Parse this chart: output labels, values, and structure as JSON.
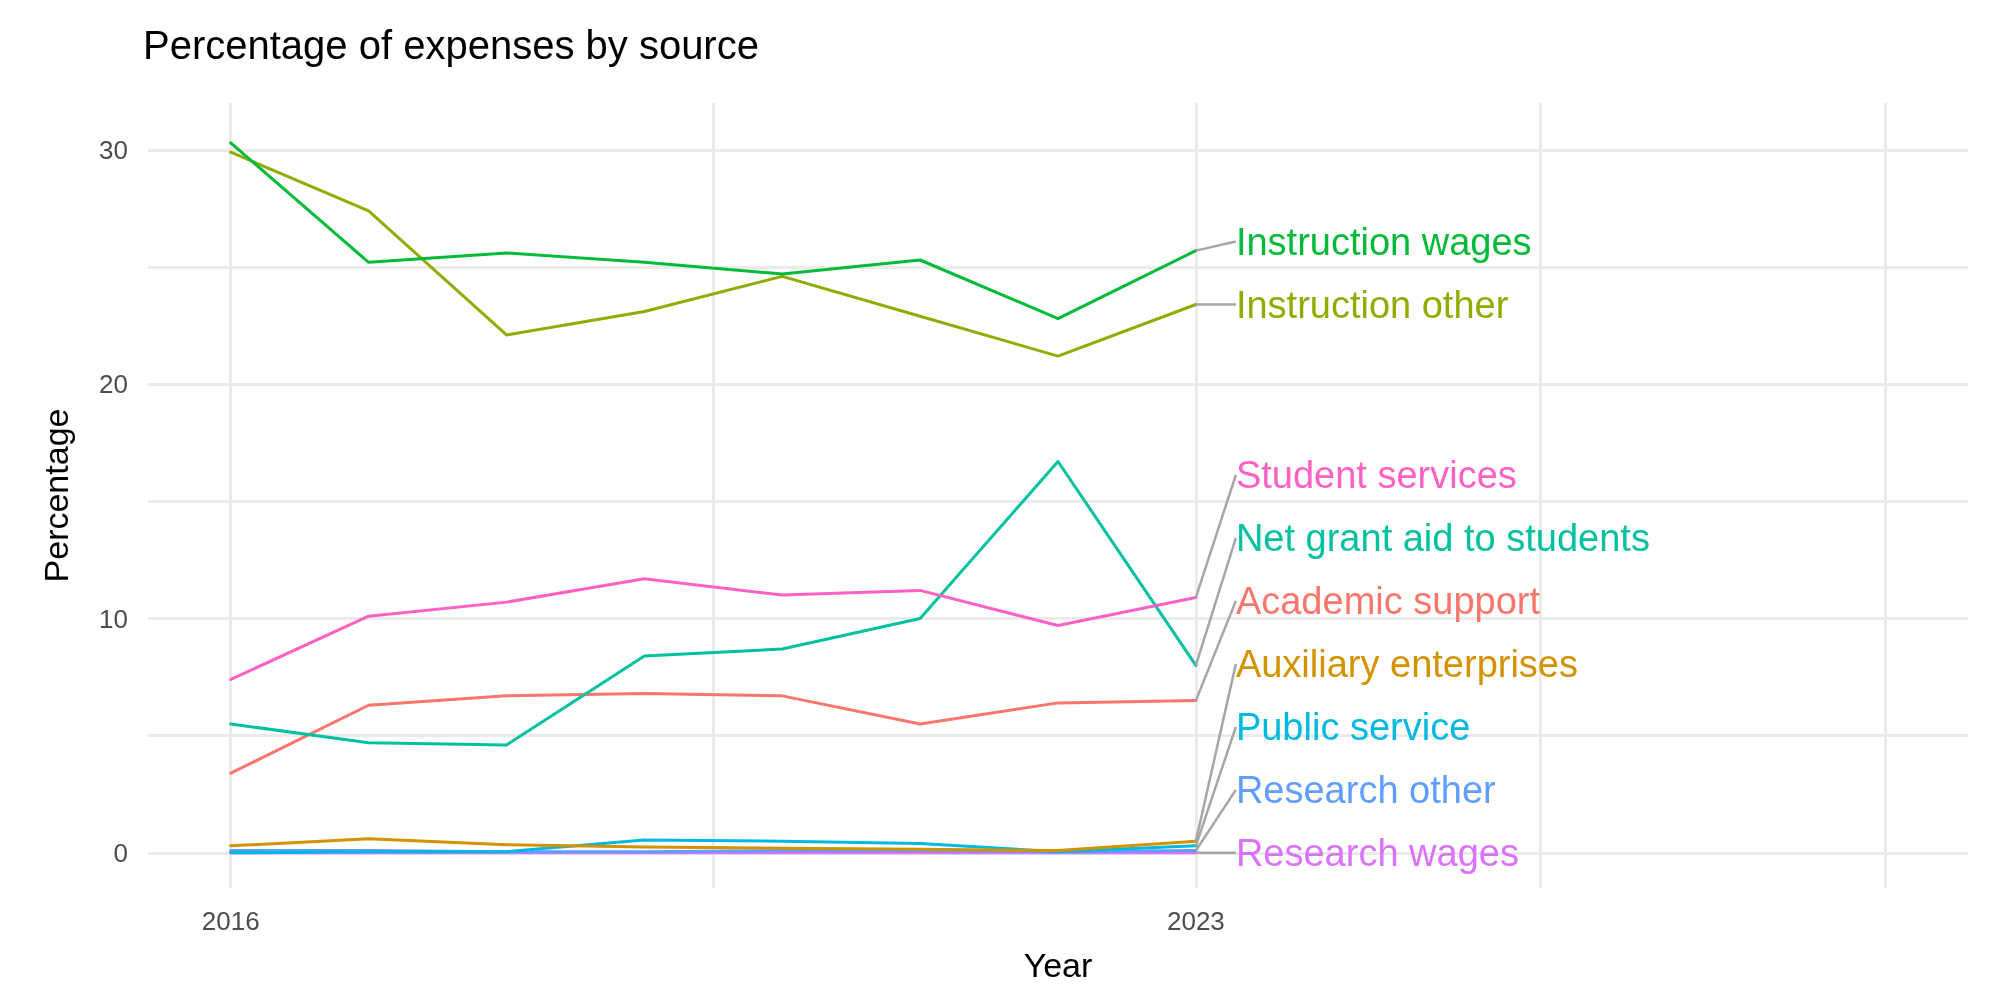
{
  "chart_data": {
    "type": "line",
    "title": "Percentage of expenses by source",
    "xlabel": "Year",
    "ylabel": "Percentage",
    "x": [
      2016,
      2017,
      2018,
      2019,
      2020,
      2021,
      2022,
      2023
    ],
    "xlim": [
      2015.4,
      2028.6
    ],
    "xticks": [
      2016,
      {
        "value": 2019.5,
        "label": null
      },
      2023,
      {
        "value": 2025.5,
        "label": null
      },
      {
        "value": 2028,
        "label": null
      }
    ],
    "ylim": [
      -1.5,
      32
    ],
    "yticks": [
      0,
      {
        "value": 5,
        "label": null
      },
      10,
      {
        "value": 15,
        "label": null
      },
      20,
      {
        "value": 25,
        "label": null
      },
      30
    ],
    "grid": true,
    "legend": false,
    "marker": "none",
    "line_style": "solid",
    "series": [
      {
        "name": "Instruction wages",
        "color": "#00ba38",
        "values": [
          30.3,
          25.2,
          25.6,
          25.2,
          24.7,
          25.3,
          22.8,
          25.7
        ]
      },
      {
        "name": "Instruction other",
        "color": "#93aa00",
        "values": [
          29.9,
          27.4,
          22.1,
          23.1,
          24.6,
          22.9,
          21.2,
          23.4
        ]
      },
      {
        "name": "Student services",
        "color": "#ff61c3",
        "values": [
          7.4,
          10.1,
          10.7,
          11.7,
          11.0,
          11.2,
          9.7,
          10.9
        ]
      },
      {
        "name": "Net grant aid to students",
        "color": "#00c19f",
        "values": [
          5.5,
          4.7,
          4.6,
          8.4,
          8.7,
          10.0,
          16.7,
          8.0
        ]
      },
      {
        "name": "Academic support",
        "color": "#f8766d",
        "values": [
          3.4,
          6.3,
          6.7,
          6.8,
          6.7,
          5.5,
          6.4,
          6.5
        ]
      },
      {
        "name": "Auxiliary enterprises",
        "color": "#d39200",
        "values": [
          0.3,
          0.6,
          0.35,
          0.25,
          0.2,
          0.15,
          0.1,
          0.5
        ]
      },
      {
        "name": "Public service",
        "color": "#00b9e3",
        "values": [
          0.0,
          0.05,
          0.05,
          0.55,
          0.5,
          0.4,
          0.05,
          0.3
        ]
      },
      {
        "name": "Research other",
        "color": "#619cff",
        "values": [
          0.1,
          0.1,
          0.05,
          0.05,
          0.1,
          0.1,
          0.05,
          0.1
        ]
      },
      {
        "name": "Research wages",
        "color": "#db72fb",
        "values": [
          0,
          0,
          0,
          0,
          0,
          0,
          0,
          0
        ]
      }
    ]
  }
}
